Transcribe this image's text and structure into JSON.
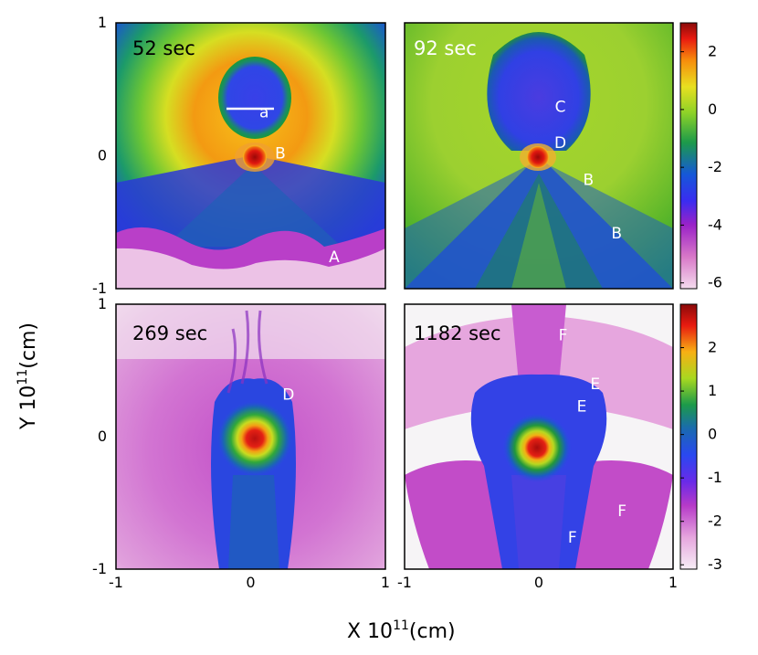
{
  "figure": {
    "ylabel_base": "Y 10",
    "ylabel_exp": "11",
    "ylabel_unit": "(cm)",
    "xlabel_base": "X 10",
    "xlabel_exp": "11",
    "xlabel_unit": "(cm)"
  },
  "chart_data": {
    "type": "heatmap",
    "panels": [
      {
        "time_label": "52 sec",
        "time_color": "#000000",
        "y_ticks": [
          "1",
          "0",
          "-1"
        ],
        "x_ticks": [],
        "annotations": [
          {
            "text": "a",
            "x": 0.1,
            "y": 0.33
          },
          {
            "text": "B",
            "x": 0.22,
            "y": 0.02
          },
          {
            "text": "A",
            "x": 0.62,
            "y": -0.76
          }
        ]
      },
      {
        "time_label": "92 sec",
        "time_color": "#ffffff",
        "y_ticks": [],
        "x_ticks": [],
        "annotations": [
          {
            "text": "C",
            "x": 0.16,
            "y": 0.37
          },
          {
            "text": "D",
            "x": 0.16,
            "y": 0.1
          },
          {
            "text": "B",
            "x": 0.37,
            "y": -0.18
          },
          {
            "text": "B",
            "x": 0.58,
            "y": -0.58
          }
        ]
      },
      {
        "time_label": "269 sec",
        "time_color": "#000000",
        "y_ticks": [
          "1",
          "0",
          "-1"
        ],
        "x_ticks": [
          "-1",
          "0",
          "1"
        ],
        "annotations": [
          {
            "text": "D",
            "x": 0.28,
            "y": 0.32
          }
        ]
      },
      {
        "time_label": "1182 sec",
        "time_color": "#000000",
        "y_ticks": [],
        "x_ticks": [
          "-1",
          "0",
          "1"
        ],
        "annotations": [
          {
            "text": "F",
            "x": 0.18,
            "y": 0.77
          },
          {
            "text": "E",
            "x": 0.42,
            "y": 0.4
          },
          {
            "text": "E",
            "x": 0.32,
            "y": 0.23
          },
          {
            "text": "F",
            "x": 0.62,
            "y": -0.56
          },
          {
            "text": "F",
            "x": 0.25,
            "y": -0.76
          }
        ]
      }
    ],
    "colorbars": [
      {
        "ticks": [
          "2",
          "0",
          "-2",
          "-4",
          "-6"
        ],
        "tick_values": [
          2,
          0,
          -2,
          -4,
          -6
        ],
        "range": [
          -6.2,
          3.0
        ]
      },
      {
        "ticks": [
          "2",
          "1",
          "0",
          "-1",
          "-2",
          "-3"
        ],
        "tick_values": [
          2,
          1,
          0,
          -1,
          -2,
          -3
        ],
        "range": [
          -3.1,
          3.0
        ]
      }
    ],
    "x_range": [
      -1,
      1
    ],
    "y_range": [
      -1,
      1
    ]
  }
}
